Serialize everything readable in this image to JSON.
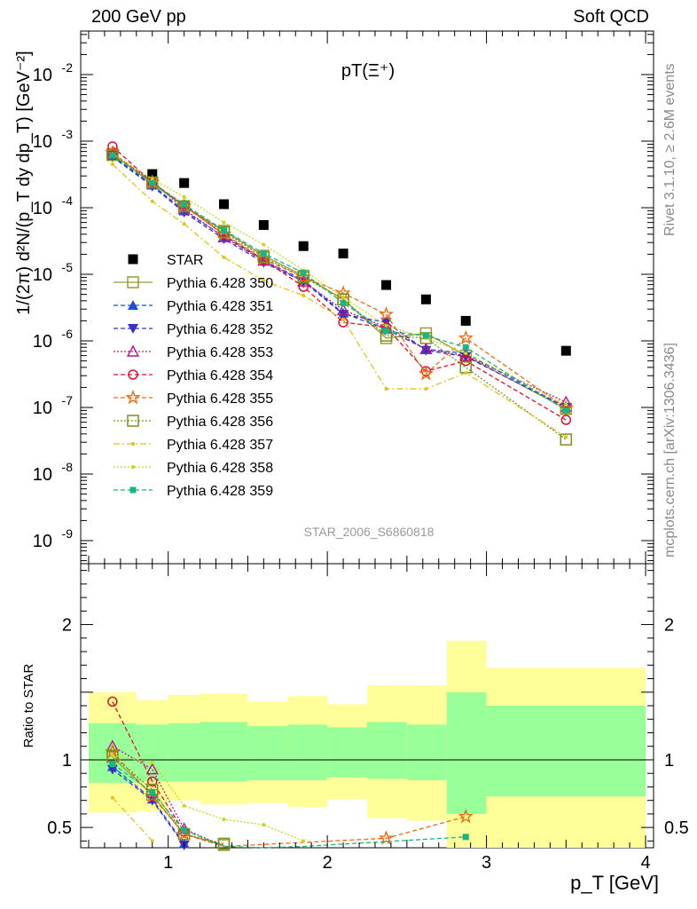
{
  "header": {
    "left": "200 GeV pp",
    "right": "Soft QCD"
  },
  "side_labels": {
    "rivet": "Rivet 3.1.10, ≥ 2.6M events",
    "reference": "mcplots.cern.ch [arXiv:1306.3436]"
  },
  "plot": {
    "title": "pT(Ξ⁺)",
    "watermark": "STAR_2006_S6860818",
    "ylabel_main": "1/(2π) d²N/(p_T dy dp_T) [GeV⁻²]",
    "ylabel_ratio": "Ratio to STAR",
    "xlabel": "p_T [GeV]"
  },
  "chart_data": [
    {
      "type": "scatter",
      "panel": "main",
      "x_scale": "linear",
      "y_scale": "log",
      "xlim": [
        0.45,
        4.05
      ],
      "ylim": [
        4.5e-10,
        0.045
      ],
      "x_ticks": [
        1,
        2,
        3,
        4
      ],
      "y_ticks": [
        "10^{-9}",
        "10^{-8}",
        "10^{-7}",
        "10^{-6}",
        "10^{-5}",
        "10^{-4}",
        "10^{-3}",
        "10^{-2}"
      ],
      "legend_position": "left-middle",
      "x": [
        0.65,
        0.9,
        1.1,
        1.35,
        1.6,
        1.85,
        2.1,
        2.37,
        2.62,
        2.87,
        3.5
      ],
      "series": [
        {
          "name": "STAR",
          "color": "#000000",
          "marker": "square-filled",
          "line": "none",
          "values": [
            0.00063,
            0.00032,
            0.000235,
            0.000113,
            5.5e-05,
            2.65e-05,
            2.05e-05,
            6.9e-06,
            4.2e-06,
            2e-06,
            7.1e-07
          ]
        },
        {
          "name": "Pythia 6.428 350",
          "color": "#9b9b2f",
          "marker": "square-open",
          "line": "solid",
          "values": [
            0.00064,
            0.00023,
            0.000105,
            4.5e-05,
            1.9e-05,
            9.5e-06,
            4.2e-06,
            1.1e-06,
            1.3e-06,
            6e-07,
            9.5e-08
          ]
        },
        {
          "name": "Pythia 6.428 351",
          "color": "#1f4fd6",
          "marker": "triangle-up-filled",
          "line": "dashed",
          "values": [
            0.0006,
            0.00022,
            8.95e-05,
            3.7e-05,
            1.6e-05,
            8.2e-06,
            2.6e-06,
            1.5e-06,
            7.5e-07,
            6.5e-07,
            1e-07
          ]
        },
        {
          "name": "Pythia 6.428 352",
          "color": "#3a2fc4",
          "marker": "triangle-down-filled",
          "line": "dashed",
          "values": [
            0.00058,
            0.00021,
            8.55e-05,
            3.4e-05,
            1.5e-05,
            7.8e-06,
            2.5e-06,
            1.9e-06,
            7.2e-07,
            5.8e-07,
            1e-07
          ]
        },
        {
          "name": "Pythia 6.428 353",
          "color": "#b01a8c",
          "marker": "triangle-up-open",
          "line": "dotted",
          "values": [
            0.00066,
            0.00025,
            9.5e-05,
            3.6e-05,
            1.6e-05,
            7.8e-06,
            2.9e-06,
            1.6e-06,
            7.5e-07,
            6e-07,
            1.2e-07
          ]
        },
        {
          "name": "Pythia 6.428 354",
          "color": "#e0102e",
          "marker": "circle-open",
          "line": "dashed",
          "values": [
            0.00083,
            0.00024,
            0.00011,
            3.9e-05,
            1.65e-05,
            6.5e-06,
            1.9e-06,
            1.6e-06,
            3.5e-07,
            5e-07,
            6.5e-08
          ]
        },
        {
          "name": "Pythia 6.428 355",
          "color": "#f06a10",
          "marker": "star-open",
          "line": "dashed",
          "values": [
            0.00067,
            0.00024,
            0.000105,
            4e-05,
            1.7e-05,
            9e-06,
            5.2e-06,
            2.5e-06,
            3.2e-07,
            1.1e-06,
            9.8e-08
          ]
        },
        {
          "name": "Pythia 6.428 356",
          "color": "#78901e",
          "marker": "square-open",
          "line": "dotted",
          "values": [
            0.00062,
            0.00024,
            0.000105,
            4.3e-05,
            1.8e-05,
            9e-06,
            4.2e-06,
            1.2e-06,
            1.1e-06,
            4e-07,
            3.3e-08
          ]
        },
        {
          "name": "Pythia 6.428 357",
          "color": "#e3c21a",
          "marker": "dot",
          "line": "dashdot",
          "values": [
            0.00045,
            0.000125,
            5.7e-05,
            1.8e-05,
            8e-06,
            4.8e-06,
            2.1e-06,
            1.9e-07,
            1.9e-07,
            3.3e-07,
            3.6e-08
          ]
        },
        {
          "name": "Pythia 6.428 358",
          "color": "#c7d81c",
          "marker": "dot",
          "line": "dotted",
          "values": [
            0.00065,
            0.00027,
            0.000145,
            6e-05,
            2.8e-05,
            1.15e-05,
            4.5e-06,
            1.7e-06,
            1.1e-06,
            6.5e-07,
            1.1e-07
          ]
        },
        {
          "name": "Pythia 6.428 359",
          "color": "#1bb582",
          "marker": "square-filled-small",
          "line": "dashed",
          "values": [
            0.00061,
            0.000235,
            0.000112,
            4.6e-05,
            2.05e-05,
            1.05e-05,
            3.7e-06,
            1.4e-06,
            1.2e-06,
            8e-07,
            9e-08
          ]
        }
      ]
    },
    {
      "type": "line",
      "panel": "ratio",
      "x_scale": "linear",
      "y_scale": "linear",
      "xlim": [
        0.45,
        4.05
      ],
      "ylim": [
        0.35,
        2.45
      ],
      "x_ticks": [
        1,
        2,
        3,
        4
      ],
      "y_ticks": [
        0.5,
        1,
        2
      ],
      "reference_line": 1,
      "bands": {
        "edges": [
          0.5,
          0.8,
          1.0,
          1.2,
          1.5,
          1.75,
          2.0,
          2.25,
          2.5,
          2.75,
          3.0,
          4.0
        ],
        "stat_lo": [
          0.83,
          0.84,
          0.84,
          0.84,
          0.85,
          0.85,
          0.87,
          0.86,
          0.85,
          0.6,
          0.73
        ],
        "stat_hi": [
          1.27,
          1.26,
          1.27,
          1.28,
          1.25,
          1.26,
          1.24,
          1.28,
          1.26,
          1.5,
          1.4
        ],
        "total_lo": [
          0.61,
          0.62,
          0.7,
          0.67,
          0.68,
          0.65,
          0.71,
          0.57,
          0.55,
          0.35,
          0.35
        ],
        "total_hi": [
          1.5,
          1.44,
          1.48,
          1.49,
          1.43,
          1.47,
          1.41,
          1.55,
          1.55,
          1.88,
          1.68
        ]
      },
      "series": [
        {
          "name": "Pythia 6.428 350",
          "values": [
            1.02,
            0.74,
            0.45,
            0.37
          ]
        },
        {
          "name": "Pythia 6.428 351",
          "values": [
            0.95,
            0.71,
            0.38
          ]
        },
        {
          "name": "Pythia 6.428 352",
          "values": [
            0.93,
            0.7,
            0.37
          ]
        },
        {
          "name": "Pythia 6.428 353",
          "values": [
            1.1,
            0.93,
            0.49,
            0.36
          ]
        },
        {
          "name": "Pythia 6.428 354",
          "values": [
            1.43,
            0.84,
            0.47
          ]
        },
        {
          "name": "Pythia 6.428 355",
          "values": [
            1.06,
            0.73,
            0.45,
            0.36,
            null,
            null,
            null,
            0.42,
            null,
            0.58
          ]
        },
        {
          "name": "Pythia 6.428 356",
          "values": [
            1.03,
            0.78,
            0.45,
            0.38
          ]
        },
        {
          "name": "Pythia 6.428 357",
          "values": [
            0.72,
            0.4
          ]
        },
        {
          "name": "Pythia 6.428 358",
          "values": [
            1.03,
            0.98,
            0.66,
            0.56,
            0.52,
            0.4
          ]
        },
        {
          "name": "Pythia 6.428 359",
          "values": [
            0.97,
            0.76,
            0.48,
            0.36,
            0.35,
            0.36,
            null,
            null,
            null,
            0.43
          ]
        }
      ]
    }
  ]
}
